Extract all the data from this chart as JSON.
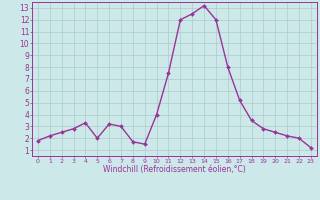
{
  "x": [
    0,
    1,
    2,
    3,
    4,
    5,
    6,
    7,
    8,
    9,
    10,
    11,
    12,
    13,
    14,
    15,
    16,
    17,
    18,
    19,
    20,
    21,
    22,
    23
  ],
  "y": [
    1.8,
    2.2,
    2.5,
    2.8,
    3.3,
    2.0,
    3.2,
    3.0,
    1.7,
    1.5,
    4.0,
    7.5,
    12.0,
    12.5,
    13.2,
    12.0,
    8.0,
    5.2,
    3.5,
    2.8,
    2.5,
    2.2,
    2.0,
    1.2
  ],
  "line_color": "#993399",
  "marker": "D",
  "marker_size": 2,
  "bg_color": "#cce8e8",
  "grid_color": "#aacccc",
  "axis_label_color": "#993399",
  "tick_color": "#993399",
  "xlabel": "Windchill (Refroidissement éolien,°C)",
  "ylabel": "",
  "ylim": [
    0.5,
    13.5
  ],
  "xlim": [
    -0.5,
    23.5
  ],
  "yticks": [
    1,
    2,
    3,
    4,
    5,
    6,
    7,
    8,
    9,
    10,
    11,
    12,
    13
  ],
  "xticks": [
    0,
    1,
    2,
    3,
    4,
    5,
    6,
    7,
    8,
    9,
    10,
    11,
    12,
    13,
    14,
    15,
    16,
    17,
    18,
    19,
    20,
    21,
    22,
    23
  ],
  "xtick_fontsize": 4.5,
  "ytick_fontsize": 5.5,
  "xlabel_fontsize": 5.5,
  "spine_color": "#993399",
  "linewidth": 1.0
}
